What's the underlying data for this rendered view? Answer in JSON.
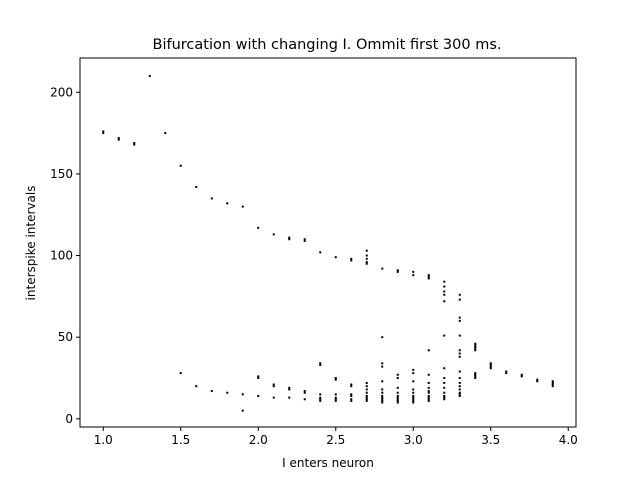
{
  "chart_data": {
    "type": "scatter",
    "title": "Bifurcation with changing I. Ommit first 300 ms.",
    "xlabel": "I enters neuron",
    "ylabel": "interspike intervals",
    "xlim": [
      0.85,
      4.05
    ],
    "ylim": [
      -5,
      221
    ],
    "xticks": [
      {
        "value": 1.0,
        "label": "1.0"
      },
      {
        "value": 1.5,
        "label": "1.5"
      },
      {
        "value": 2.0,
        "label": "2.0"
      },
      {
        "value": 2.5,
        "label": "2.5"
      },
      {
        "value": 3.0,
        "label": "3.0"
      },
      {
        "value": 3.5,
        "label": "3.5"
      },
      {
        "value": 4.0,
        "label": "4.0"
      }
    ],
    "yticks": [
      {
        "value": 0,
        "label": "0"
      },
      {
        "value": 50,
        "label": "50"
      },
      {
        "value": 100,
        "label": "100"
      },
      {
        "value": 150,
        "label": "150"
      },
      {
        "value": 200,
        "label": "200"
      }
    ],
    "grid": false,
    "marker_color": "#000000",
    "points": [
      [
        1.0,
        176
      ],
      [
        1.0,
        175
      ],
      [
        1.1,
        172
      ],
      [
        1.1,
        171
      ],
      [
        1.2,
        169
      ],
      [
        1.2,
        168
      ],
      [
        1.3,
        210
      ],
      [
        1.4,
        175
      ],
      [
        1.5,
        155
      ],
      [
        1.5,
        28
      ],
      [
        1.6,
        142
      ],
      [
        1.6,
        20
      ],
      [
        1.7,
        135
      ],
      [
        1.7,
        17
      ],
      [
        1.8,
        132
      ],
      [
        1.8,
        16
      ],
      [
        1.9,
        130
      ],
      [
        1.9,
        15
      ],
      [
        1.9,
        5
      ],
      [
        2.0,
        117
      ],
      [
        2.0,
        26
      ],
      [
        2.0,
        25
      ],
      [
        2.0,
        14
      ],
      [
        2.1,
        113
      ],
      [
        2.1,
        21
      ],
      [
        2.1,
        20
      ],
      [
        2.1,
        13
      ],
      [
        2.2,
        111
      ],
      [
        2.2,
        110
      ],
      [
        2.2,
        19
      ],
      [
        2.2,
        18
      ],
      [
        2.2,
        13
      ],
      [
        2.3,
        110
      ],
      [
        2.3,
        109
      ],
      [
        2.3,
        17
      ],
      [
        2.3,
        16
      ],
      [
        2.3,
        12
      ],
      [
        2.4,
        102
      ],
      [
        2.4,
        34
      ],
      [
        2.4,
        33
      ],
      [
        2.4,
        15
      ],
      [
        2.4,
        13
      ],
      [
        2.4,
        12
      ],
      [
        2.4,
        11
      ],
      [
        2.5,
        99
      ],
      [
        2.5,
        25
      ],
      [
        2.5,
        24
      ],
      [
        2.5,
        15
      ],
      [
        2.5,
        13
      ],
      [
        2.5,
        12
      ],
      [
        2.5,
        11
      ],
      [
        2.6,
        98
      ],
      [
        2.6,
        97
      ],
      [
        2.6,
        21
      ],
      [
        2.6,
        20
      ],
      [
        2.6,
        15
      ],
      [
        2.6,
        14
      ],
      [
        2.6,
        12
      ],
      [
        2.6,
        11
      ],
      [
        2.7,
        103
      ],
      [
        2.7,
        100
      ],
      [
        2.7,
        98
      ],
      [
        2.7,
        96
      ],
      [
        2.7,
        95
      ],
      [
        2.7,
        22
      ],
      [
        2.7,
        20
      ],
      [
        2.7,
        18
      ],
      [
        2.7,
        16
      ],
      [
        2.7,
        14
      ],
      [
        2.7,
        13
      ],
      [
        2.7,
        12
      ],
      [
        2.7,
        11
      ],
      [
        2.8,
        92
      ],
      [
        2.8,
        50
      ],
      [
        2.8,
        34
      ],
      [
        2.8,
        32
      ],
      [
        2.8,
        23
      ],
      [
        2.8,
        18
      ],
      [
        2.8,
        16
      ],
      [
        2.8,
        14
      ],
      [
        2.8,
        13
      ],
      [
        2.8,
        12
      ],
      [
        2.8,
        11
      ],
      [
        2.8,
        10
      ],
      [
        2.9,
        91
      ],
      [
        2.9,
        90
      ],
      [
        2.9,
        27
      ],
      [
        2.9,
        25
      ],
      [
        2.9,
        19
      ],
      [
        2.9,
        16
      ],
      [
        2.9,
        14
      ],
      [
        2.9,
        13
      ],
      [
        2.9,
        12
      ],
      [
        2.9,
        11
      ],
      [
        2.9,
        10
      ],
      [
        3.0,
        90
      ],
      [
        3.0,
        88
      ],
      [
        3.0,
        30
      ],
      [
        3.0,
        28
      ],
      [
        3.0,
        23
      ],
      [
        3.0,
        18
      ],
      [
        3.0,
        16
      ],
      [
        3.0,
        14
      ],
      [
        3.0,
        13
      ],
      [
        3.0,
        12
      ],
      [
        3.0,
        11
      ],
      [
        3.0,
        10
      ],
      [
        3.1,
        88
      ],
      [
        3.1,
        87
      ],
      [
        3.1,
        86
      ],
      [
        3.1,
        42
      ],
      [
        3.1,
        27
      ],
      [
        3.1,
        22
      ],
      [
        3.1,
        19
      ],
      [
        3.1,
        17
      ],
      [
        3.1,
        16
      ],
      [
        3.1,
        14
      ],
      [
        3.1,
        13
      ],
      [
        3.1,
        12
      ],
      [
        3.1,
        11
      ],
      [
        3.2,
        84
      ],
      [
        3.2,
        81
      ],
      [
        3.2,
        78
      ],
      [
        3.2,
        76
      ],
      [
        3.2,
        72
      ],
      [
        3.2,
        51
      ],
      [
        3.2,
        31
      ],
      [
        3.2,
        25
      ],
      [
        3.2,
        22
      ],
      [
        3.2,
        19
      ],
      [
        3.2,
        16
      ],
      [
        3.2,
        14
      ],
      [
        3.2,
        13
      ],
      [
        3.2,
        12
      ],
      [
        3.3,
        76
      ],
      [
        3.3,
        73
      ],
      [
        3.3,
        62
      ],
      [
        3.3,
        60
      ],
      [
        3.3,
        51
      ],
      [
        3.3,
        42
      ],
      [
        3.3,
        40
      ],
      [
        3.3,
        38
      ],
      [
        3.3,
        29
      ],
      [
        3.3,
        25
      ],
      [
        3.3,
        22
      ],
      [
        3.3,
        20
      ],
      [
        3.3,
        18
      ],
      [
        3.3,
        16
      ],
      [
        3.3,
        15
      ],
      [
        3.3,
        14
      ],
      [
        3.4,
        46
      ],
      [
        3.4,
        45
      ],
      [
        3.4,
        44
      ],
      [
        3.4,
        43
      ],
      [
        3.4,
        42
      ],
      [
        3.4,
        28
      ],
      [
        3.4,
        27
      ],
      [
        3.4,
        26
      ],
      [
        3.4,
        25
      ],
      [
        3.5,
        34
      ],
      [
        3.5,
        33
      ],
      [
        3.5,
        32
      ],
      [
        3.5,
        31
      ],
      [
        3.6,
        29
      ],
      [
        3.6,
        28
      ],
      [
        3.7,
        27
      ],
      [
        3.7,
        26
      ],
      [
        3.8,
        24
      ],
      [
        3.8,
        23
      ],
      [
        3.9,
        23
      ],
      [
        3.9,
        22
      ],
      [
        3.9,
        21
      ],
      [
        3.9,
        20
      ]
    ]
  }
}
